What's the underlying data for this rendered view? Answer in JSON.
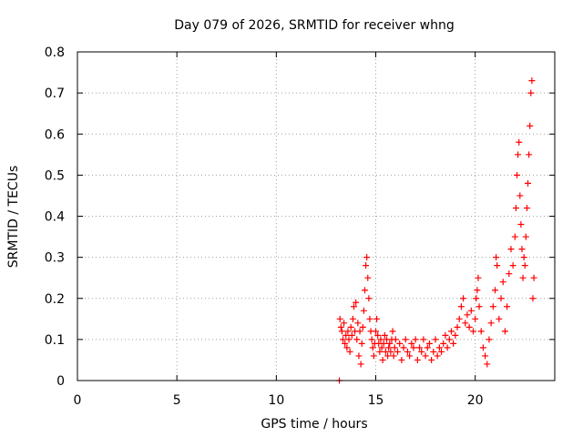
{
  "chart_data": {
    "type": "scatter",
    "title": "Day 079 of 2026, SRMTID for receiver whng",
    "xlabel": "GPS time / hours",
    "ylabel": "SRMTID / TECUs",
    "xlim": [
      0,
      24
    ],
    "ylim": [
      0,
      0.8
    ],
    "x_ticks": [
      0,
      5,
      10,
      15,
      20
    ],
    "y_ticks": [
      0,
      0.1,
      0.2,
      0.3,
      0.4,
      0.5,
      0.6,
      0.7,
      0.8
    ],
    "x_tick_labels": [
      "0",
      "5",
      "10",
      "15",
      "20"
    ],
    "y_tick_labels": [
      "0",
      "0.1",
      "0.2",
      "0.3",
      "0.4",
      "0.5",
      "0.6",
      "0.7",
      "0.8"
    ],
    "grid": true,
    "marker": "+",
    "color": "#ff0000",
    "series": [
      {
        "name": "SRMTID",
        "points": [
          [
            13.17,
            0.0
          ],
          [
            13.2,
            0.15
          ],
          [
            13.25,
            0.13
          ],
          [
            13.3,
            0.12
          ],
          [
            13.35,
            0.1
          ],
          [
            13.4,
            0.14
          ],
          [
            13.45,
            0.09
          ],
          [
            13.5,
            0.11
          ],
          [
            13.55,
            0.08
          ],
          [
            13.6,
            0.12
          ],
          [
            13.65,
            0.1
          ],
          [
            13.7,
            0.07
          ],
          [
            13.75,
            0.13
          ],
          [
            13.8,
            0.11
          ],
          [
            13.85,
            0.15
          ],
          [
            13.9,
            0.18
          ],
          [
            13.95,
            0.12
          ],
          [
            14.0,
            0.19
          ],
          [
            14.05,
            0.1
          ],
          [
            14.1,
            0.14
          ],
          [
            14.15,
            0.06
          ],
          [
            14.2,
            0.12
          ],
          [
            14.25,
            0.04
          ],
          [
            14.3,
            0.09
          ],
          [
            14.35,
            0.13
          ],
          [
            14.4,
            0.17
          ],
          [
            14.45,
            0.22
          ],
          [
            14.5,
            0.28
          ],
          [
            14.55,
            0.3
          ],
          [
            14.6,
            0.25
          ],
          [
            14.65,
            0.2
          ],
          [
            14.7,
            0.15
          ],
          [
            14.75,
            0.12
          ],
          [
            14.8,
            0.1
          ],
          [
            14.85,
            0.08
          ],
          [
            14.9,
            0.06
          ],
          [
            14.95,
            0.09
          ],
          [
            15.0,
            0.12
          ],
          [
            15.05,
            0.15
          ],
          [
            15.1,
            0.11
          ],
          [
            15.15,
            0.09
          ],
          [
            15.2,
            0.07
          ],
          [
            15.25,
            0.1
          ],
          [
            15.3,
            0.08
          ],
          [
            15.35,
            0.05
          ],
          [
            15.4,
            0.09
          ],
          [
            15.45,
            0.11
          ],
          [
            15.5,
            0.07
          ],
          [
            15.55,
            0.1
          ],
          [
            15.6,
            0.06
          ],
          [
            15.65,
            0.08
          ],
          [
            15.7,
            0.09
          ],
          [
            15.75,
            0.07
          ],
          [
            15.8,
            0.1
          ],
          [
            15.85,
            0.12
          ],
          [
            15.9,
            0.06
          ],
          [
            15.95,
            0.08
          ],
          [
            16.0,
            0.1
          ],
          [
            16.1,
            0.07
          ],
          [
            16.2,
            0.09
          ],
          [
            16.3,
            0.05
          ],
          [
            16.4,
            0.08
          ],
          [
            16.5,
            0.1
          ],
          [
            16.6,
            0.07
          ],
          [
            16.7,
            0.06
          ],
          [
            16.8,
            0.09
          ],
          [
            16.9,
            0.08
          ],
          [
            17.0,
            0.1
          ],
          [
            17.1,
            0.05
          ],
          [
            17.2,
            0.08
          ],
          [
            17.3,
            0.07
          ],
          [
            17.4,
            0.1
          ],
          [
            17.5,
            0.06
          ],
          [
            17.6,
            0.08
          ],
          [
            17.7,
            0.09
          ],
          [
            17.8,
            0.05
          ],
          [
            17.9,
            0.07
          ],
          [
            18.0,
            0.1
          ],
          [
            18.1,
            0.06
          ],
          [
            18.2,
            0.08
          ],
          [
            18.3,
            0.07
          ],
          [
            18.4,
            0.09
          ],
          [
            18.5,
            0.11
          ],
          [
            18.6,
            0.08
          ],
          [
            18.7,
            0.1
          ],
          [
            18.8,
            0.12
          ],
          [
            18.9,
            0.09
          ],
          [
            19.0,
            0.11
          ],
          [
            19.1,
            0.13
          ],
          [
            19.2,
            0.15
          ],
          [
            19.3,
            0.18
          ],
          [
            19.4,
            0.2
          ],
          [
            19.5,
            0.14
          ],
          [
            19.6,
            0.16
          ],
          [
            19.7,
            0.13
          ],
          [
            19.8,
            0.17
          ],
          [
            19.9,
            0.12
          ],
          [
            20.0,
            0.15
          ],
          [
            20.05,
            0.2
          ],
          [
            20.1,
            0.22
          ],
          [
            20.15,
            0.25
          ],
          [
            20.2,
            0.18
          ],
          [
            20.3,
            0.12
          ],
          [
            20.4,
            0.08
          ],
          [
            20.5,
            0.06
          ],
          [
            20.6,
            0.04
          ],
          [
            20.7,
            0.1
          ],
          [
            20.8,
            0.14
          ],
          [
            20.9,
            0.18
          ],
          [
            21.0,
            0.22
          ],
          [
            21.05,
            0.3
          ],
          [
            21.1,
            0.28
          ],
          [
            21.2,
            0.15
          ],
          [
            21.3,
            0.2
          ],
          [
            21.4,
            0.24
          ],
          [
            21.5,
            0.12
          ],
          [
            21.6,
            0.18
          ],
          [
            21.7,
            0.26
          ],
          [
            21.8,
            0.32
          ],
          [
            21.9,
            0.28
          ],
          [
            22.0,
            0.35
          ],
          [
            22.05,
            0.42
          ],
          [
            22.1,
            0.5
          ],
          [
            22.15,
            0.55
          ],
          [
            22.2,
            0.58
          ],
          [
            22.25,
            0.45
          ],
          [
            22.3,
            0.38
          ],
          [
            22.35,
            0.32
          ],
          [
            22.4,
            0.25
          ],
          [
            22.45,
            0.3
          ],
          [
            22.5,
            0.28
          ],
          [
            22.55,
            0.35
          ],
          [
            22.6,
            0.42
          ],
          [
            22.65,
            0.48
          ],
          [
            22.7,
            0.55
          ],
          [
            22.75,
            0.62
          ],
          [
            22.8,
            0.7
          ],
          [
            22.85,
            0.73
          ],
          [
            22.9,
            0.2
          ],
          [
            22.95,
            0.25
          ]
        ]
      }
    ]
  }
}
